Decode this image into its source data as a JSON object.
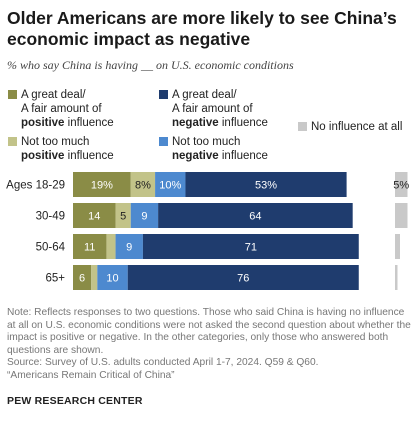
{
  "title": "Older Americans are more likely to see China’s economic impact as negative",
  "subtitle": "% who say China is having __ on U.S. economic conditions",
  "legend": [
    {
      "line1": "A great deal/",
      "line2": "A fair amount of",
      "bold": "positive",
      "rest": " influence",
      "color": "#8a8c46"
    },
    {
      "line1": "A great deal/",
      "line2": "A fair amount of",
      "bold": "negative",
      "rest": " influence",
      "color": "#1f3c6e"
    },
    {
      "line1": "No influence at all",
      "color": "#c9c9c9"
    },
    {
      "line1": "Not too much",
      "bold": "positive",
      "rest": " influence",
      "color": "#c2c389"
    },
    {
      "line1": "Not too much",
      "bold": "negative",
      "rest": " influence",
      "color": "#4d89cf"
    }
  ],
  "chart_data": {
    "type": "bar",
    "orientation": "horizontal-stacked",
    "categories": [
      "Ages 18-29",
      "30-49",
      "50-64",
      "65+"
    ],
    "series": [
      {
        "name": "A great deal/A fair amount of positive influence",
        "color": "#8a8c46",
        "values": [
          19,
          14,
          11,
          6
        ],
        "labels": [
          "19%",
          "14",
          "11",
          "6"
        ]
      },
      {
        "name": "Not too much positive influence",
        "color": "#c2c389",
        "values": [
          8,
          5,
          3,
          2
        ],
        "labels": [
          "8%",
          "5",
          "",
          ""
        ]
      },
      {
        "name": "Not too much negative influence",
        "color": "#4d89cf",
        "values": [
          10,
          9,
          9,
          10
        ],
        "labels": [
          "10%",
          "9",
          "9",
          "10"
        ]
      },
      {
        "name": "A great deal/A fair amount of negative influence",
        "color": "#1f3c6e",
        "values": [
          53,
          64,
          71,
          76
        ],
        "labels": [
          "53%",
          "64",
          "71",
          "76"
        ]
      }
    ],
    "no_influence": {
      "name": "No influence at all",
      "color": "#c9c9c9",
      "values": [
        5,
        5,
        2,
        1
      ],
      "labels": [
        "5%",
        "",
        "",
        ""
      ]
    }
  },
  "note": "Note: Reflects responses to two questions. Those who said China is having no influence at all on U.S. economic conditions were not asked the second question about whether the impact is positive or negative. In the other categories, only those who answered both questions are shown.",
  "source_line1": "Source: Survey of U.S. adults conducted April 1-7, 2024. Q59 & Q60.",
  "source_line2": "“Americans Remain Critical of China”",
  "brand": "PEW RESEARCH CENTER"
}
